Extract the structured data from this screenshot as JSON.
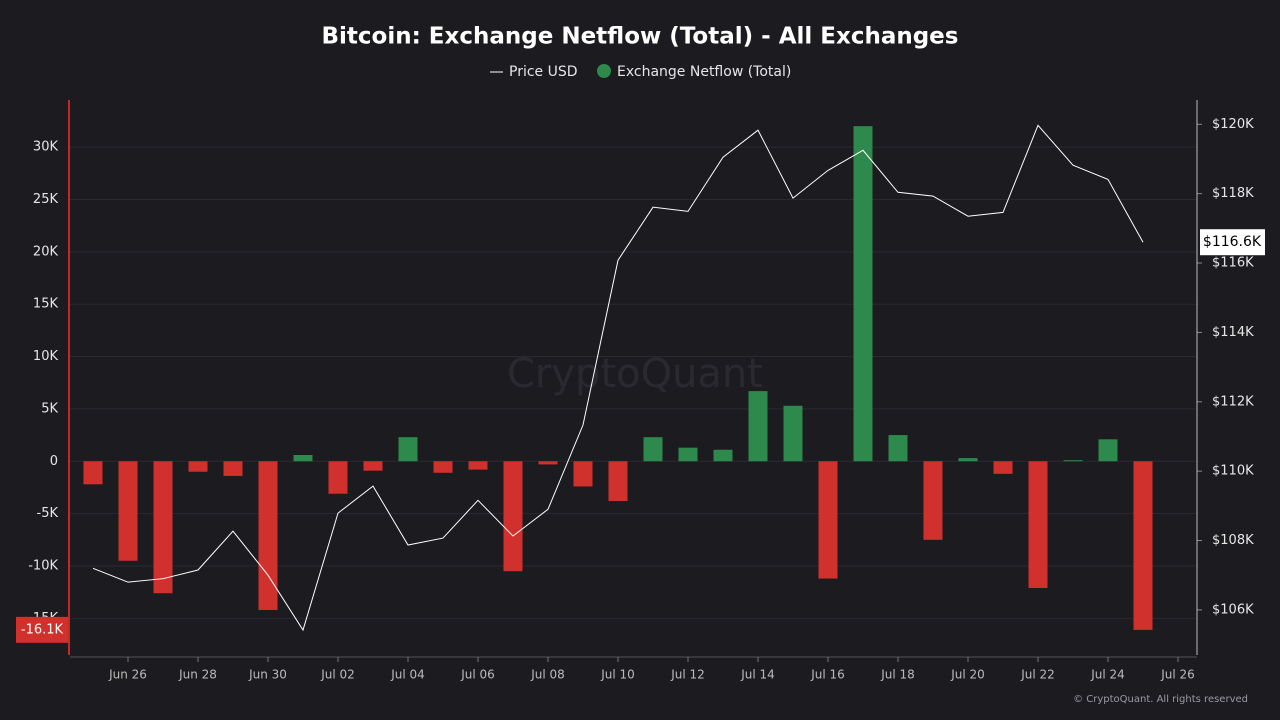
{
  "chart_data": {
    "type": "bar-line",
    "title": "Bitcoin: Exchange Netflow (Total) - All Exchanges",
    "watermark": "CryptoQuant",
    "credit": "© CryptoQuant. All rights reserved",
    "categories": [
      null,
      "Jun 26",
      null,
      "Jun 28",
      null,
      "Jun 30",
      null,
      "Jul 02",
      null,
      "Jul 04",
      null,
      "Jul 06",
      null,
      "Jul 08",
      null,
      "Jul 10",
      null,
      "Jul 12",
      null,
      "Jul 14",
      null,
      "Jul 16",
      null,
      "Jul 18",
      null,
      "Jul 20",
      null,
      "Jul 22",
      null,
      "Jul 24",
      null,
      "Jul 26"
    ],
    "series": [
      {
        "name": "Exchange Netflow (Total)",
        "type": "bar",
        "axis": "y",
        "color": "#2e8a4c",
        "negative_color": "#d0312d",
        "values": [
          -2200,
          -9500,
          -12600,
          -1000,
          -1400,
          -14200,
          600,
          -3100,
          -900,
          2300,
          -1100,
          -800,
          -10500,
          -300,
          -2400,
          -3800,
          2300,
          1300,
          1100,
          6700,
          5300,
          -11200,
          32000,
          2500,
          -7500,
          300,
          -1200,
          -12100,
          100,
          2100,
          -16100,
          null
        ],
        "value_labels": [
          null,
          null,
          null,
          null,
          null,
          null,
          null,
          null,
          null,
          null,
          null,
          null,
          null,
          null,
          null,
          null,
          null,
          null,
          null,
          null,
          null,
          null,
          null,
          null,
          null,
          null,
          null,
          null,
          null,
          null,
          "-16.1K",
          null
        ]
      },
      {
        "name": "Price USD",
        "type": "line",
        "axis": "y2",
        "color": "#ffffff",
        "values": [
          107200,
          106800,
          106900,
          107150,
          108270,
          107000,
          105420,
          108790,
          109570,
          107870,
          108070,
          109160,
          108130,
          108900,
          111330,
          116080,
          117610,
          117490,
          119050,
          119830,
          117870,
          118670,
          119250,
          118040,
          117930,
          117350,
          117460,
          119970,
          118820,
          118410,
          116600,
          null
        ],
        "value_labels": [
          null,
          null,
          null,
          null,
          null,
          null,
          null,
          null,
          null,
          null,
          null,
          null,
          null,
          null,
          null,
          null,
          null,
          null,
          null,
          null,
          null,
          null,
          null,
          null,
          null,
          null,
          null,
          null,
          null,
          null,
          "$116.6K",
          null
        ]
      }
    ],
    "ylim": [
      -18500,
      34500
    ],
    "yticks": [
      {
        "value": -15000,
        "label": "-15K"
      },
      {
        "value": -10000,
        "label": "-10K"
      },
      {
        "value": -5000,
        "label": "-5K"
      },
      0,
      {
        "value": 5000,
        "label": "5K"
      },
      {
        "value": 10000,
        "label": "10K"
      },
      {
        "value": 15000,
        "label": "15K"
      },
      {
        "value": 20000,
        "label": "20K"
      },
      {
        "value": 25000,
        "label": "25K"
      },
      {
        "value": 30000,
        "label": "30K"
      }
    ],
    "y2lim": [
      104700,
      120700
    ],
    "y2ticks": [
      {
        "value": 106000,
        "label": "$106K"
      },
      {
        "value": 108000,
        "label": "$108K"
      },
      {
        "value": 110000,
        "label": "$110K"
      },
      {
        "value": 112000,
        "label": "$112K"
      },
      {
        "value": 114000,
        "label": "$114K"
      },
      {
        "value": 116000,
        "label": "$116K"
      },
      {
        "value": 118000,
        "label": "$118K"
      },
      {
        "value": 120000,
        "label": "$120K"
      }
    ],
    "grid": true
  }
}
